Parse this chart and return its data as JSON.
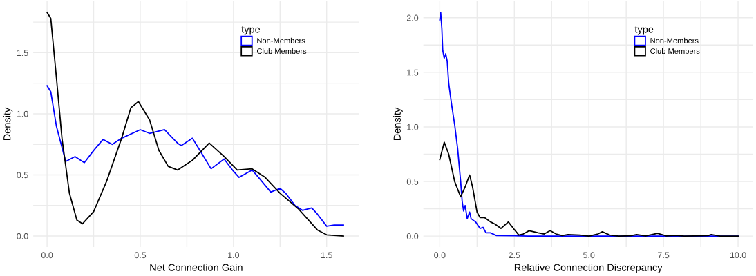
{
  "chart_data": [
    {
      "type": "line",
      "xlabel": "Net Connection Gain",
      "ylabel": "Density",
      "legend_title": "type",
      "legend": "top right",
      "grid": true,
      "marker": "none",
      "line_style": "solid",
      "xlim": [
        -0.074,
        1.674
      ],
      "ylim": [
        -0.09,
        1.92
      ],
      "xticks": [
        {
          "value": 0,
          "label": "0.0"
        },
        {
          "value": 0.25,
          "label": null
        },
        {
          "value": 0.5,
          "label": "0.5"
        },
        {
          "value": 0.75,
          "label": null
        },
        {
          "value": 1.0,
          "label": "1.0"
        },
        {
          "value": 1.25,
          "label": null
        },
        {
          "value": 1.5,
          "label": "1.5"
        }
      ],
      "yticks": [
        {
          "value": 0,
          "label": "0.0"
        },
        {
          "value": 0.25,
          "label": null
        },
        {
          "value": 0.5,
          "label": "0.5"
        },
        {
          "value": 0.75,
          "label": null
        },
        {
          "value": 1.0,
          "label": "1.0"
        },
        {
          "value": 1.25,
          "label": null
        },
        {
          "value": 1.5,
          "label": "1.5"
        },
        {
          "value": 1.75,
          "label": null
        }
      ],
      "series": [
        {
          "name": "Non-Members",
          "color": "#0000ff",
          "x": [
            0,
            0.02,
            0.05,
            0.1,
            0.15,
            0.2,
            0.25,
            0.3,
            0.35,
            0.4,
            0.5,
            0.55,
            0.63,
            0.7,
            0.72,
            0.78,
            0.82,
            0.88,
            0.95,
            1.0,
            1.03,
            1.1,
            1.14,
            1.2,
            1.25,
            1.28,
            1.33,
            1.37,
            1.42,
            1.45,
            1.5,
            1.54,
            1.59
          ],
          "values": [
            1.23,
            1.18,
            0.9,
            0.61,
            0.65,
            0.6,
            0.7,
            0.79,
            0.75,
            0.8,
            0.87,
            0.84,
            0.87,
            0.76,
            0.74,
            0.8,
            0.7,
            0.55,
            0.63,
            0.53,
            0.48,
            0.54,
            0.47,
            0.36,
            0.39,
            0.35,
            0.25,
            0.21,
            0.23,
            0.18,
            0.08,
            0.09,
            0.09
          ]
        },
        {
          "name": "Club Members",
          "color": "#000000",
          "x": [
            0,
            0.02,
            0.05,
            0.08,
            0.12,
            0.16,
            0.19,
            0.25,
            0.32,
            0.4,
            0.45,
            0.49,
            0.55,
            0.6,
            0.65,
            0.7,
            0.78,
            0.87,
            0.95,
            1.02,
            1.1,
            1.17,
            1.25,
            1.35,
            1.45,
            1.5,
            1.59
          ],
          "values": [
            1.83,
            1.78,
            1.3,
            0.8,
            0.35,
            0.13,
            0.1,
            0.2,
            0.45,
            0.8,
            1.05,
            1.1,
            0.95,
            0.7,
            0.57,
            0.54,
            0.62,
            0.76,
            0.65,
            0.54,
            0.55,
            0.48,
            0.35,
            0.22,
            0.05,
            0.01,
            0.0
          ]
        }
      ]
    },
    {
      "type": "line",
      "xlabel": "Relative Connection Discrepancy",
      "ylabel": "Density",
      "legend_title": "type",
      "legend": "top right",
      "grid": true,
      "marker": "none",
      "line_style": "solid",
      "xlim": [
        -0.55,
        10.5
      ],
      "ylim": [
        -0.1,
        2.15
      ],
      "xticks": [
        {
          "value": 0,
          "label": "0.0"
        },
        {
          "value": 1.25,
          "label": null
        },
        {
          "value": 2.5,
          "label": "2.5"
        },
        {
          "value": 3.75,
          "label": null
        },
        {
          "value": 5.0,
          "label": "5.0"
        },
        {
          "value": 6.25,
          "label": null
        },
        {
          "value": 7.5,
          "label": "7.5"
        },
        {
          "value": 8.75,
          "label": null
        },
        {
          "value": 10.0,
          "label": "10.0"
        }
      ],
      "yticks": [
        {
          "value": 0,
          "label": "0.0"
        },
        {
          "value": 0.25,
          "label": null
        },
        {
          "value": 0.5,
          "label": "0.5"
        },
        {
          "value": 0.75,
          "label": null
        },
        {
          "value": 1.0,
          "label": "1.0"
        },
        {
          "value": 1.25,
          "label": null
        },
        {
          "value": 1.5,
          "label": "1.5"
        },
        {
          "value": 1.75,
          "label": null
        },
        {
          "value": 2.0,
          "label": "2.0"
        }
      ],
      "series": [
        {
          "name": "Non-Members",
          "color": "#0000ff",
          "x": [
            0,
            0.03,
            0.07,
            0.1,
            0.15,
            0.2,
            0.25,
            0.3,
            0.4,
            0.5,
            0.6,
            0.7,
            0.75,
            0.8,
            0.85,
            0.92,
            1.0,
            1.05,
            1.2,
            1.35,
            1.45,
            1.55,
            1.7,
            1.9,
            2.5,
            3,
            10
          ],
          "values": [
            1.98,
            2.05,
            1.9,
            1.7,
            1.63,
            1.67,
            1.6,
            1.4,
            1.2,
            1.02,
            0.8,
            0.5,
            0.32,
            0.23,
            0.28,
            0.16,
            0.22,
            0.16,
            0.13,
            0.07,
            0.08,
            0.03,
            0.03,
            0.005,
            0.003,
            0,
            0
          ]
        },
        {
          "name": "Club Members",
          "color": "#000000",
          "x": [
            0,
            0.15,
            0.3,
            0.5,
            0.7,
            0.85,
            1.0,
            1.1,
            1.25,
            1.35,
            1.5,
            1.7,
            1.85,
            2.05,
            2.3,
            2.5,
            2.65,
            2.8,
            3.0,
            3.3,
            3.5,
            3.7,
            3.9,
            4.1,
            4.3,
            4.7,
            5.0,
            5.3,
            5.45,
            5.7,
            6.0,
            6.4,
            6.6,
            6.9,
            7.3,
            7.6,
            7.9,
            8.2,
            9.0,
            9.1,
            9.4,
            10
          ],
          "values": [
            0.7,
            0.86,
            0.75,
            0.5,
            0.36,
            0.45,
            0.56,
            0.45,
            0.22,
            0.17,
            0.17,
            0.13,
            0.11,
            0.07,
            0.13,
            0.06,
            0.01,
            0.02,
            0.05,
            0.03,
            0.02,
            0.05,
            0.02,
            0.005,
            0.015,
            0.01,
            0,
            0.02,
            0.04,
            0.01,
            0,
            0.003,
            0.015,
            0.002,
            0.025,
            0.002,
            0.007,
            0,
            0.005,
            0.015,
            0,
            0
          ]
        }
      ]
    }
  ]
}
